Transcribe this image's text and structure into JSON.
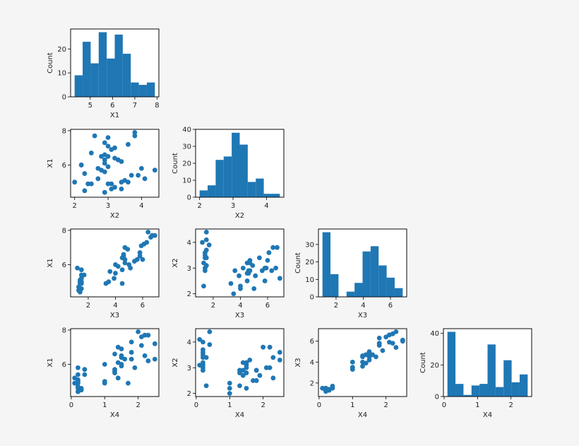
{
  "chart_data": [
    {
      "type": "histogram",
      "x_label": "X1",
      "y_label": "Count",
      "color": "#1f77b4",
      "bins": [
        4.3,
        4.66,
        5.02,
        5.38,
        5.74,
        6.1,
        6.46,
        6.82,
        7.18,
        7.54,
        7.9
      ],
      "values": [
        9,
        23,
        14,
        27,
        16,
        26,
        18,
        6,
        5,
        6
      ],
      "xlim": [
        4.12,
        8.08
      ],
      "xticks": [
        5,
        6,
        7,
        8
      ],
      "ylim": [
        0,
        28.35
      ],
      "yticks": [
        0,
        10,
        20
      ]
    },
    {
      "type": "scatter",
      "x_label": "X2",
      "y_label": "X1",
      "color": "#1f77b4",
      "x": [
        3.5,
        3.0,
        3.2,
        3.1,
        3.6,
        3.9,
        3.4,
        3.4,
        2.9,
        3.1,
        3.7,
        4.0,
        4.4,
        2.3,
        4.1,
        3.2,
        3.2,
        3.1,
        2.3,
        2.8,
        2.8,
        3.3,
        2.4,
        2.9,
        2.7,
        2.0,
        3.0,
        2.2,
        2.9,
        2.9,
        3.3,
        2.7,
        3.0,
        2.9,
        3.0,
        3.0,
        2.5,
        2.9,
        2.5,
        3.6,
        3.8,
        2.6,
        2.2,
        3.8,
        3.4
      ],
      "y": [
        5.1,
        4.9,
        4.7,
        4.6,
        5.0,
        5.4,
        4.6,
        5.0,
        4.4,
        4.9,
        5.4,
        5.8,
        5.7,
        4.5,
        5.2,
        7.0,
        6.4,
        6.9,
        5.5,
        6.5,
        5.7,
        6.3,
        4.9,
        6.6,
        5.2,
        5.0,
        5.9,
        6.0,
        6.1,
        5.6,
        6.3,
        5.8,
        7.1,
        6.3,
        6.5,
        7.6,
        4.9,
        7.3,
        6.7,
        7.2,
        7.7,
        7.7,
        6.0,
        7.9,
        6.2
      ],
      "xlim": [
        1.88,
        4.52
      ],
      "xticks": [
        2,
        3,
        4
      ],
      "ylim": [
        4.12,
        8.08
      ],
      "yticks": [
        6,
        8
      ]
    },
    {
      "type": "histogram",
      "x_label": "X2",
      "y_label": "Count",
      "color": "#1f77b4",
      "bins": [
        2.0,
        2.24,
        2.48,
        2.72,
        2.96,
        3.2,
        3.44,
        3.68,
        3.92,
        4.16,
        4.4
      ],
      "values": [
        4,
        7,
        22,
        24,
        38,
        31,
        9,
        11,
        2,
        2
      ],
      "xlim": [
        1.88,
        4.52
      ],
      "xticks": [
        2,
        3,
        4
      ],
      "ylim": [
        0,
        40
      ],
      "yticks": [
        0,
        10,
        20,
        30,
        40
      ]
    },
    {
      "type": "scatter",
      "x_label": "X3",
      "y_label": "X1",
      "color": "#1f77b4",
      "x": [
        1.4,
        1.4,
        1.3,
        1.5,
        1.4,
        1.7,
        1.4,
        1.5,
        1.4,
        1.5,
        1.5,
        1.2,
        1.5,
        1.3,
        1.5,
        4.7,
        4.5,
        4.9,
        4.0,
        4.6,
        4.5,
        4.7,
        3.3,
        4.6,
        3.9,
        3.5,
        4.2,
        4.0,
        4.7,
        3.6,
        6.0,
        5.1,
        5.9,
        5.6,
        5.8,
        6.6,
        4.5,
        6.3,
        5.8,
        6.1,
        6.7,
        6.9,
        5.0,
        6.4,
        5.4
      ],
      "y": [
        5.1,
        4.9,
        4.7,
        4.6,
        5.0,
        5.4,
        4.6,
        5.0,
        4.4,
        4.9,
        5.4,
        5.8,
        5.7,
        4.5,
        5.2,
        7.0,
        6.4,
        6.9,
        5.5,
        6.5,
        5.7,
        6.3,
        4.9,
        6.6,
        5.2,
        5.0,
        5.9,
        6.0,
        6.1,
        5.6,
        6.3,
        5.8,
        7.1,
        6.3,
        6.5,
        7.6,
        4.9,
        7.3,
        6.7,
        7.2,
        7.7,
        7.7,
        6.0,
        7.9,
        6.2
      ],
      "xlim": [
        0.705,
        7.195
      ],
      "xticks": [
        2,
        4,
        6
      ],
      "ylim": [
        4.12,
        8.08
      ],
      "yticks": [
        6,
        8
      ]
    },
    {
      "type": "scatter",
      "x_label": "X3",
      "y_label": "X2",
      "color": "#1f77b4",
      "x": [
        1.4,
        1.4,
        1.3,
        1.5,
        1.4,
        1.7,
        1.4,
        1.5,
        1.4,
        1.5,
        1.5,
        1.2,
        1.5,
        1.3,
        1.5,
        4.7,
        4.5,
        4.9,
        4.0,
        4.6,
        4.5,
        4.7,
        3.3,
        4.6,
        3.9,
        3.5,
        4.2,
        4.0,
        4.7,
        3.6,
        6.0,
        5.1,
        5.9,
        5.6,
        5.8,
        6.6,
        4.5,
        6.3,
        5.8,
        6.1,
        6.7,
        6.9,
        5.0,
        6.4,
        5.4
      ],
      "y": [
        3.5,
        3.0,
        3.2,
        3.1,
        3.6,
        3.9,
        3.4,
        3.4,
        2.9,
        3.1,
        3.7,
        4.0,
        4.4,
        2.3,
        4.1,
        3.2,
        3.2,
        3.1,
        2.3,
        2.8,
        2.8,
        3.3,
        2.4,
        2.9,
        2.7,
        2.0,
        3.0,
        2.2,
        2.9,
        2.9,
        3.3,
        2.7,
        3.0,
        2.9,
        3.0,
        3.0,
        2.5,
        2.9,
        2.5,
        3.6,
        3.8,
        2.6,
        2.2,
        3.8,
        3.4
      ],
      "xlim": [
        0.705,
        7.195
      ],
      "xticks": [
        2,
        4,
        6
      ],
      "ylim": [
        1.88,
        4.52
      ],
      "yticks": [
        2,
        3,
        4
      ]
    },
    {
      "type": "histogram",
      "x_label": "X3",
      "y_label": "Count",
      "color": "#1f77b4",
      "bins": [
        1.0,
        1.59,
        2.18,
        2.77,
        3.36,
        3.95,
        4.54,
        5.13,
        5.72,
        6.31,
        6.9
      ],
      "values": [
        37,
        13,
        0,
        3,
        8,
        26,
        29,
        18,
        11,
        5
      ],
      "xlim": [
        0.705,
        7.195
      ],
      "xticks": [
        2,
        4,
        6
      ],
      "ylim": [
        0,
        38.85
      ],
      "yticks": [
        0,
        10,
        20,
        30
      ]
    },
    {
      "type": "scatter",
      "x_label": "X4",
      "y_label": "X1",
      "color": "#1f77b4",
      "x": [
        0.2,
        0.2,
        0.2,
        0.2,
        0.2,
        0.4,
        0.3,
        0.2,
        0.2,
        0.1,
        0.2,
        0.2,
        0.4,
        0.3,
        0.1,
        1.4,
        1.5,
        1.5,
        1.3,
        1.5,
        1.3,
        1.6,
        1.0,
        1.3,
        1.4,
        1.0,
        1.5,
        1.0,
        1.4,
        1.3,
        2.5,
        1.9,
        2.1,
        1.8,
        2.2,
        2.1,
        1.7,
        1.8,
        1.8,
        2.5,
        2.2,
        2.3,
        1.5,
        2.0,
        2.3
      ],
      "y": [
        5.1,
        4.9,
        4.7,
        4.6,
        5.0,
        5.4,
        4.6,
        5.0,
        4.4,
        4.9,
        5.4,
        5.8,
        5.7,
        4.5,
        5.2,
        7.0,
        6.4,
        6.9,
        5.5,
        6.5,
        5.7,
        6.3,
        4.9,
        6.6,
        5.2,
        5.0,
        5.9,
        6.0,
        6.1,
        5.6,
        6.3,
        5.8,
        7.1,
        6.3,
        6.5,
        7.6,
        4.9,
        7.3,
        6.7,
        7.2,
        7.7,
        7.7,
        6.0,
        7.9,
        6.2
      ],
      "xlim": [
        -0.02,
        2.62
      ],
      "xticks": [
        0,
        1,
        2
      ],
      "ylim": [
        4.12,
        8.08
      ],
      "yticks": [
        6,
        8
      ]
    },
    {
      "type": "scatter",
      "x_label": "X4",
      "y_label": "X2",
      "color": "#1f77b4",
      "x": [
        0.2,
        0.2,
        0.2,
        0.2,
        0.2,
        0.4,
        0.3,
        0.2,
        0.2,
        0.1,
        0.2,
        0.2,
        0.4,
        0.3,
        0.1,
        1.4,
        1.5,
        1.5,
        1.3,
        1.5,
        1.3,
        1.6,
        1.0,
        1.3,
        1.4,
        1.0,
        1.5,
        1.0,
        1.4,
        1.3,
        2.5,
        1.9,
        2.1,
        1.8,
        2.2,
        2.1,
        1.7,
        1.8,
        1.8,
        2.5,
        2.2,
        2.3,
        1.5,
        2.0,
        2.3
      ],
      "y": [
        3.5,
        3.0,
        3.2,
        3.1,
        3.6,
        3.9,
        3.4,
        3.4,
        2.9,
        3.1,
        3.7,
        4.0,
        4.4,
        2.3,
        4.1,
        3.2,
        3.2,
        3.1,
        2.3,
        2.8,
        2.8,
        3.3,
        2.4,
        2.9,
        2.7,
        2.0,
        3.0,
        2.2,
        2.9,
        2.9,
        3.3,
        2.7,
        3.0,
        2.9,
        3.0,
        3.0,
        2.5,
        2.9,
        2.5,
        3.6,
        3.8,
        2.6,
        2.2,
        3.8,
        3.4
      ],
      "xlim": [
        -0.02,
        2.62
      ],
      "xticks": [
        0,
        1,
        2
      ],
      "ylim": [
        1.88,
        4.52
      ],
      "yticks": [
        2,
        3,
        4
      ]
    },
    {
      "type": "scatter",
      "x_label": "X4",
      "y_label": "X3",
      "color": "#1f77b4",
      "x": [
        0.2,
        0.2,
        0.2,
        0.2,
        0.2,
        0.4,
        0.3,
        0.2,
        0.2,
        0.1,
        0.2,
        0.2,
        0.4,
        0.3,
        0.1,
        1.4,
        1.5,
        1.5,
        1.3,
        1.5,
        1.3,
        1.6,
        1.0,
        1.3,
        1.4,
        1.0,
        1.5,
        1.0,
        1.4,
        1.3,
        2.5,
        1.9,
        2.1,
        1.8,
        2.2,
        2.1,
        1.7,
        1.8,
        1.8,
        2.5,
        2.2,
        2.3,
        1.5,
        2.0,
        2.3
      ],
      "y": [
        1.4,
        1.4,
        1.3,
        1.5,
        1.4,
        1.7,
        1.4,
        1.5,
        1.4,
        1.5,
        1.5,
        1.2,
        1.5,
        1.3,
        1.5,
        4.7,
        4.5,
        4.9,
        4.0,
        4.6,
        4.5,
        4.7,
        3.3,
        4.6,
        3.9,
        3.5,
        4.2,
        4.0,
        4.7,
        3.6,
        6.0,
        5.1,
        5.9,
        5.6,
        5.8,
        6.6,
        4.5,
        6.3,
        5.8,
        6.1,
        6.7,
        6.9,
        5.0,
        6.4,
        5.4
      ],
      "xlim": [
        -0.02,
        2.62
      ],
      "xticks": [
        0,
        1,
        2
      ],
      "ylim": [
        0.705,
        7.195
      ],
      "yticks": [
        2,
        4,
        6
      ]
    },
    {
      "type": "histogram",
      "x_label": "X4",
      "y_label": "Count",
      "color": "#1f77b4",
      "bins": [
        0.1,
        0.34,
        0.58,
        0.82,
        1.06,
        1.3,
        1.54,
        1.78,
        2.02,
        2.26,
        2.5
      ],
      "values": [
        41,
        8,
        1,
        7,
        8,
        33,
        6,
        23,
        9,
        14
      ],
      "xlim": [
        -0.02,
        2.62
      ],
      "xticks": [
        0,
        1,
        2
      ],
      "ylim": [
        0,
        43
      ],
      "yticks": [
        0,
        20,
        40
      ]
    }
  ]
}
